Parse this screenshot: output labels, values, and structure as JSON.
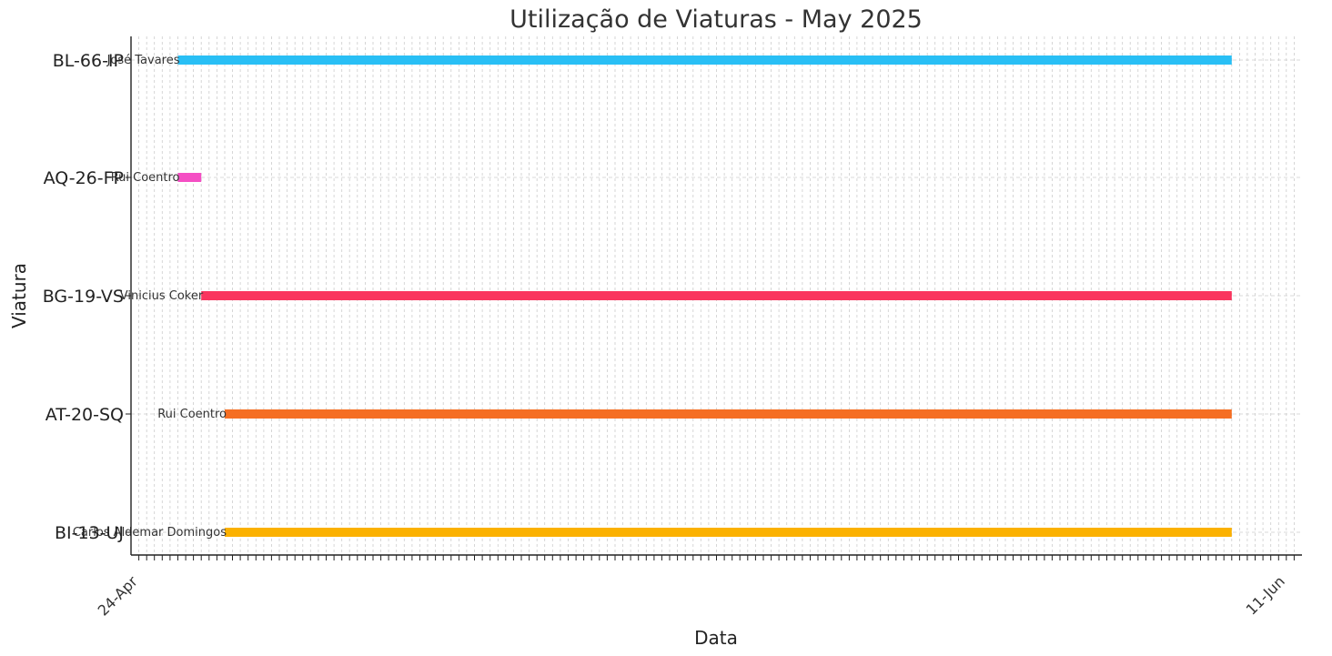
{
  "chart_data": {
    "type": "gantt",
    "title": "Utilização de Viaturas - May 2025",
    "xlabel": "Data",
    "ylabel": "Viatura",
    "grid": true,
    "x_axis": {
      "type": "date",
      "range": [
        "2025-04-23",
        "2025-06-12"
      ],
      "tick_label_format": "DD-Mon",
      "tick_labels_visible": [
        "24-Apr",
        "11-Jun"
      ]
    },
    "categories": [
      "BL-66-IP",
      "AQ-26-FP",
      "BG-19-VS",
      "AT-20-SQ",
      "BI-13-UJ"
    ],
    "tasks": [
      {
        "vehicle": "BL-66-IP",
        "driver": "José Tavares",
        "start": "2025-04-25",
        "end": "2025-06-09",
        "color": "#29bff5"
      },
      {
        "vehicle": "AQ-26-FP",
        "driver": "Rui Coentro",
        "start": "2025-04-25",
        "end": "2025-04-26",
        "color": "#f54fc4"
      },
      {
        "vehicle": "BG-19-VS",
        "driver": "Vinicius Coker",
        "start": "2025-04-26",
        "end": "2025-06-09",
        "color": "#fa355e"
      },
      {
        "vehicle": "AT-20-SQ",
        "driver": "Rui Coentro",
        "start": "2025-04-27",
        "end": "2025-06-09",
        "color": "#f56e23"
      },
      {
        "vehicle": "BI-13-UJ",
        "driver": "Carlos Aldemar Domingos",
        "start": "2025-04-27",
        "end": "2025-06-09",
        "color": "#fbb100"
      }
    ]
  }
}
